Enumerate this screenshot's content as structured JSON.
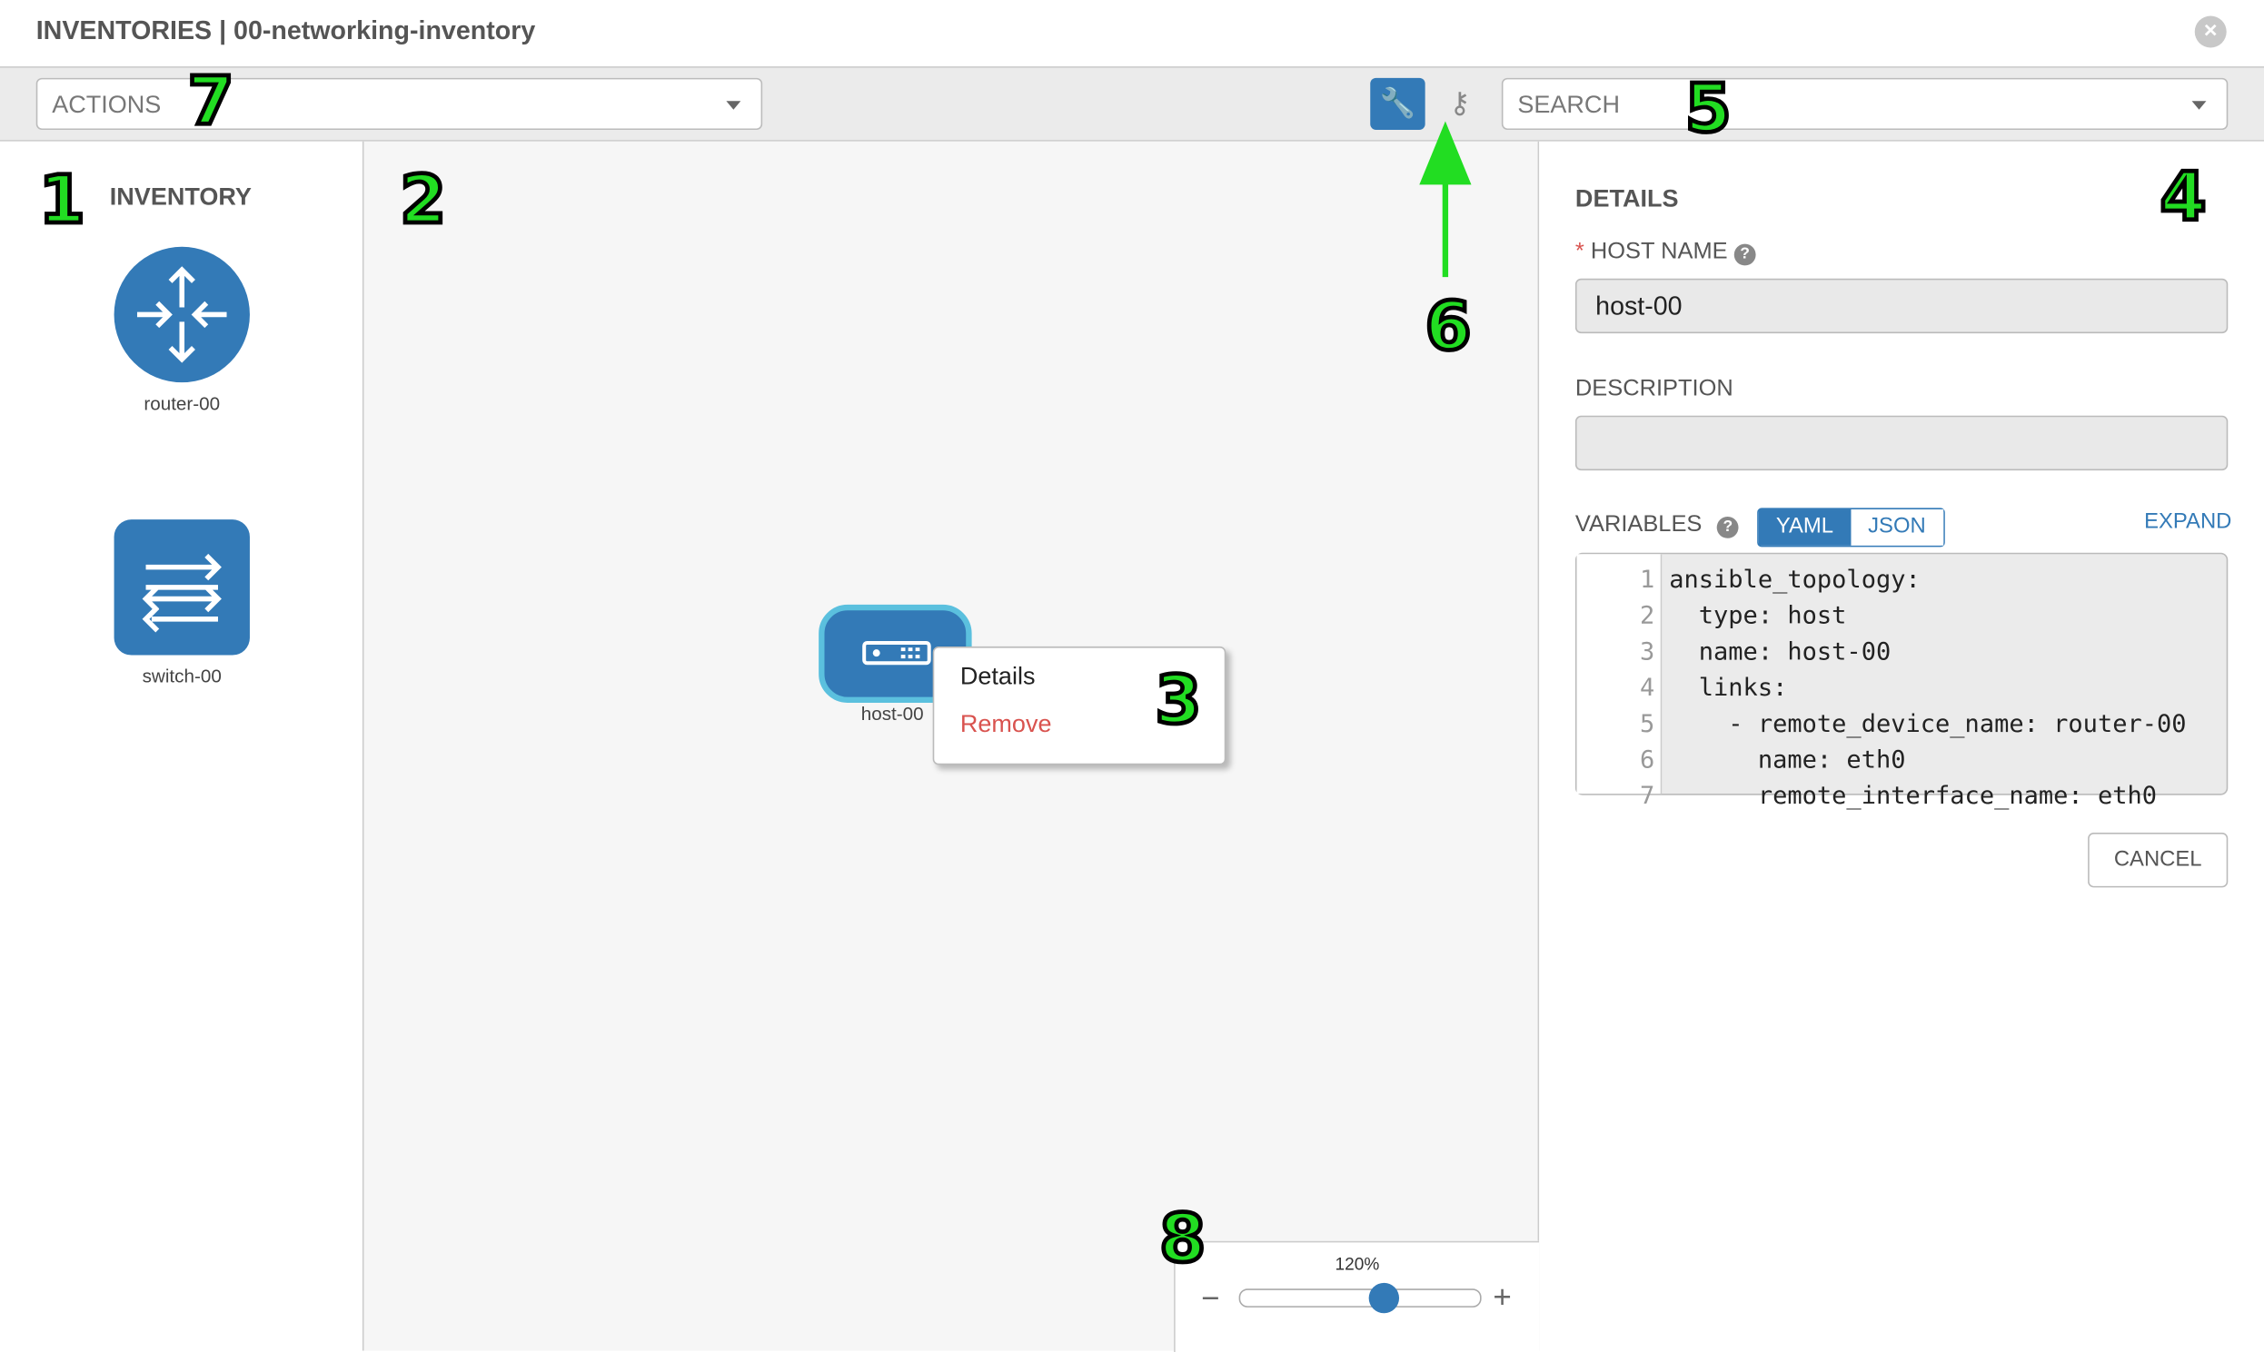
{
  "header": {
    "title": "INVENTORIES | 00-networking-inventory",
    "close_icon": "close-circle-icon"
  },
  "toolbar": {
    "actions_placeholder": "ACTIONS",
    "search_placeholder": "SEARCH",
    "wrench_icon": "wrench-icon",
    "key_icon": "key-icon",
    "accent": "#337ab7"
  },
  "sidebar": {
    "title": "INVENTORY",
    "items": [
      {
        "label": "router-00",
        "icon": "router-icon"
      },
      {
        "label": "switch-00",
        "icon": "switch-icon"
      }
    ]
  },
  "canvas": {
    "node": {
      "label": "host-00",
      "icon": "host-server-icon"
    },
    "context_menu": {
      "details": "Details",
      "remove": "Remove"
    },
    "zoom": {
      "label": "120%",
      "value_percent": 120
    }
  },
  "details": {
    "title": "DETAILS",
    "host_name_label": "HOST NAME",
    "host_name_value": "host-00",
    "description_label": "DESCRIPTION",
    "description_value": "",
    "variables_label": "VARIABLES",
    "yaml": "YAML",
    "json": "JSON",
    "expand": "EXPAND",
    "cancel": "CANCEL",
    "code": [
      {
        "n": "1",
        "t": "ansible_topology:"
      },
      {
        "n": "2",
        "t": "  type: host"
      },
      {
        "n": "3",
        "t": "  name: host-00"
      },
      {
        "n": "4",
        "t": "  links:"
      },
      {
        "n": "5",
        "t": "    - remote_device_name: router-00"
      },
      {
        "n": "6",
        "t": "      name: eth0"
      },
      {
        "n": "7",
        "t": "      remote_interface_name: eth0"
      }
    ]
  },
  "annotations": [
    "1",
    "2",
    "3",
    "4",
    "5",
    "6",
    "7",
    "8"
  ]
}
